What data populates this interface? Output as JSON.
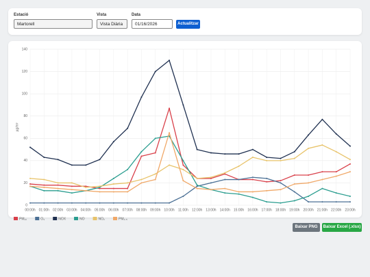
{
  "controls": {
    "station_label": "Estació",
    "station": "Martorell",
    "view_label": "Vista",
    "view": "Vista Diària",
    "date_label": "Data",
    "date": "01/16/2026",
    "update_button": "Actualitzar"
  },
  "chart_data": {
    "type": "line",
    "y_label": "µg/m³",
    "categories": [
      "00:00h",
      "01:00h",
      "02:00h",
      "03:00h",
      "04:00h",
      "05:00h",
      "06:00h",
      "07:00h",
      "08:00h",
      "09:00h",
      "10:00h",
      "11:00h",
      "12:00h",
      "13:00h",
      "14:00h",
      "15:00h",
      "16:00h",
      "17:00h",
      "18:00h",
      "19:00h",
      "20:00h",
      "21:00h",
      "22:00h",
      "23:00h"
    ],
    "ylim": [
      0,
      140
    ],
    "yticks": [
      0,
      20,
      40,
      60,
      80,
      100,
      120,
      140
    ],
    "grid": true,
    "series": [
      {
        "name": "PM₁₀",
        "color": "#d9404a",
        "values": [
          19,
          18,
          18,
          17,
          17,
          15,
          15,
          15,
          44,
          47,
          87,
          36,
          24,
          24,
          28,
          23,
          23,
          21,
          22,
          27,
          27,
          30,
          30,
          37
        ]
      },
      {
        "name": "O₃",
        "color": "#4a6f94",
        "values": [
          2,
          2,
          2,
          2,
          2,
          2,
          2,
          2,
          2,
          2,
          2,
          8,
          17,
          20,
          23,
          23,
          25,
          24,
          20,
          12,
          3,
          3,
          3,
          3
        ]
      },
      {
        "name": "NOX",
        "color": "#1f3050",
        "values": [
          52,
          43,
          41,
          36,
          36,
          41,
          57,
          69,
          97,
          120,
          130,
          90,
          50,
          47,
          46,
          46,
          50,
          43,
          42,
          48,
          63,
          77,
          64,
          53
        ]
      },
      {
        "name": "NO",
        "color": "#2a9d8f",
        "values": [
          17,
          13,
          13,
          11,
          13,
          16,
          24,
          32,
          48,
          60,
          62,
          40,
          18,
          14,
          11,
          10,
          7,
          3,
          2,
          4,
          8,
          15,
          11,
          8
        ]
      },
      {
        "name": "NO₂",
        "color": "#e8c36a",
        "values": [
          24,
          23,
          20,
          20,
          16,
          17,
          19,
          20,
          23,
          28,
          36,
          32,
          24,
          25,
          29,
          35,
          43,
          40,
          40,
          42,
          51,
          54,
          48,
          41
        ]
      },
      {
        "name": "PM₂.₅",
        "color": "#f0a868",
        "values": [
          17,
          16,
          15,
          14,
          13,
          12,
          12,
          12,
          20,
          23,
          65,
          22,
          15,
          14,
          15,
          12,
          12,
          13,
          14,
          19,
          20,
          23,
          26,
          30
        ]
      }
    ]
  },
  "actions": {
    "png_button": "Baixar PNG",
    "excel_button": "Baixar Excel (.xlsx)"
  }
}
